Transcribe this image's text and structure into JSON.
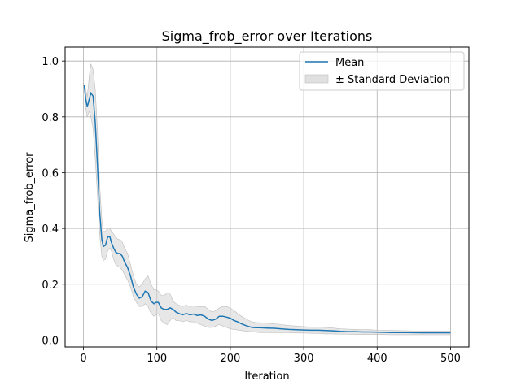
{
  "chart_data": {
    "type": "line",
    "title": "Sigma_frob_error over Iterations",
    "xlabel": "Iteration",
    "ylabel": "Sigma_frob_error",
    "xlim": [
      -25,
      525
    ],
    "ylim": [
      -0.025,
      1.05
    ],
    "xticks": [
      0,
      100,
      200,
      300,
      400,
      500
    ],
    "yticks": [
      0.0,
      0.2,
      0.4,
      0.6,
      0.8,
      1.0
    ],
    "xtick_labels": [
      "0",
      "100",
      "200",
      "300",
      "400",
      "500"
    ],
    "ytick_labels": [
      "0.0",
      "0.2",
      "0.4",
      "0.6",
      "0.8",
      "1.0"
    ],
    "grid": true,
    "legend_position": "top-right",
    "colors": {
      "mean": "#1f77b4",
      "band": "#d3d3d3",
      "grid": "#b0b0b0"
    },
    "series": [
      {
        "name": "Mean",
        "x": [
          1,
          3,
          5,
          8,
          10,
          13,
          16,
          19,
          22,
          25,
          27,
          30,
          33,
          36,
          38,
          41,
          44,
          47,
          50,
          53,
          56,
          60,
          64,
          68,
          72,
          76,
          80,
          84,
          88,
          92,
          96,
          99,
          102,
          106,
          110,
          114,
          118,
          122,
          126,
          130,
          135,
          140,
          145,
          150,
          155,
          160,
          165,
          170,
          175,
          180,
          185,
          190,
          195,
          200,
          205,
          210,
          215,
          220,
          225,
          230,
          235,
          240,
          250,
          260,
          270,
          280,
          290,
          300,
          310,
          320,
          330,
          340,
          350,
          360,
          370,
          380,
          390,
          400,
          420,
          440,
          460,
          480,
          500
        ],
        "y": [
          0.915,
          0.865,
          0.835,
          0.865,
          0.885,
          0.875,
          0.78,
          0.63,
          0.46,
          0.36,
          0.335,
          0.34,
          0.37,
          0.37,
          0.35,
          0.33,
          0.315,
          0.31,
          0.31,
          0.3,
          0.28,
          0.26,
          0.23,
          0.19,
          0.165,
          0.15,
          0.155,
          0.175,
          0.17,
          0.14,
          0.13,
          0.135,
          0.135,
          0.115,
          0.11,
          0.11,
          0.115,
          0.11,
          0.1,
          0.095,
          0.09,
          0.095,
          0.09,
          0.093,
          0.088,
          0.09,
          0.085,
          0.075,
          0.07,
          0.075,
          0.085,
          0.085,
          0.082,
          0.078,
          0.07,
          0.065,
          0.058,
          0.053,
          0.048,
          0.045,
          0.044,
          0.044,
          0.043,
          0.042,
          0.04,
          0.038,
          0.037,
          0.036,
          0.035,
          0.035,
          0.034,
          0.033,
          0.031,
          0.03,
          0.03,
          0.029,
          0.029,
          0.028,
          0.027,
          0.027,
          0.026,
          0.026,
          0.026
        ]
      },
      {
        "name": "± Standard Deviation",
        "x": [
          1,
          3,
          5,
          8,
          10,
          13,
          16,
          19,
          22,
          25,
          27,
          30,
          33,
          36,
          38,
          41,
          44,
          47,
          50,
          53,
          56,
          60,
          64,
          68,
          72,
          76,
          80,
          84,
          88,
          92,
          96,
          99,
          102,
          106,
          110,
          114,
          118,
          122,
          126,
          130,
          135,
          140,
          145,
          150,
          155,
          160,
          165,
          170,
          175,
          180,
          185,
          190,
          195,
          200,
          205,
          210,
          215,
          220,
          225,
          230,
          235,
          240,
          250,
          260,
          270,
          280,
          290,
          300,
          310,
          320,
          330,
          340,
          350,
          360,
          370,
          380,
          390,
          400,
          420,
          440,
          460,
          480,
          500
        ],
        "lower": [
          0.915,
          0.83,
          0.8,
          0.82,
          0.8,
          0.76,
          0.65,
          0.52,
          0.38,
          0.3,
          0.285,
          0.29,
          0.32,
          0.33,
          0.32,
          0.29,
          0.27,
          0.265,
          0.26,
          0.25,
          0.235,
          0.215,
          0.19,
          0.155,
          0.135,
          0.12,
          0.12,
          0.13,
          0.12,
          0.095,
          0.085,
          0.09,
          0.095,
          0.07,
          0.06,
          0.055,
          0.07,
          0.08,
          0.07,
          0.07,
          0.065,
          0.07,
          0.065,
          0.065,
          0.06,
          0.055,
          0.05,
          0.045,
          0.045,
          0.05,
          0.055,
          0.05,
          0.045,
          0.04,
          0.038,
          0.036,
          0.034,
          0.032,
          0.03,
          0.03,
          0.028,
          0.027,
          0.026,
          0.026,
          0.026,
          0.026,
          0.025,
          0.025,
          0.024,
          0.023,
          0.022,
          0.022,
          0.021,
          0.021,
          0.02,
          0.02,
          0.02,
          0.02,
          0.019,
          0.019,
          0.019,
          0.019,
          0.019
        ],
        "upper": [
          0.915,
          0.9,
          0.87,
          0.95,
          0.99,
          0.97,
          0.9,
          0.75,
          0.56,
          0.43,
          0.39,
          0.39,
          0.4,
          0.4,
          0.39,
          0.38,
          0.37,
          0.36,
          0.36,
          0.35,
          0.33,
          0.31,
          0.27,
          0.23,
          0.2,
          0.19,
          0.2,
          0.22,
          0.23,
          0.2,
          0.18,
          0.18,
          0.175,
          0.16,
          0.16,
          0.17,
          0.165,
          0.14,
          0.13,
          0.125,
          0.12,
          0.125,
          0.12,
          0.122,
          0.12,
          0.12,
          0.12,
          0.11,
          0.1,
          0.105,
          0.115,
          0.12,
          0.12,
          0.115,
          0.105,
          0.095,
          0.085,
          0.078,
          0.07,
          0.065,
          0.062,
          0.062,
          0.06,
          0.058,
          0.055,
          0.052,
          0.05,
          0.048,
          0.046,
          0.046,
          0.045,
          0.043,
          0.04,
          0.039,
          0.038,
          0.037,
          0.037,
          0.035,
          0.034,
          0.033,
          0.032,
          0.032,
          0.032
        ]
      }
    ]
  }
}
